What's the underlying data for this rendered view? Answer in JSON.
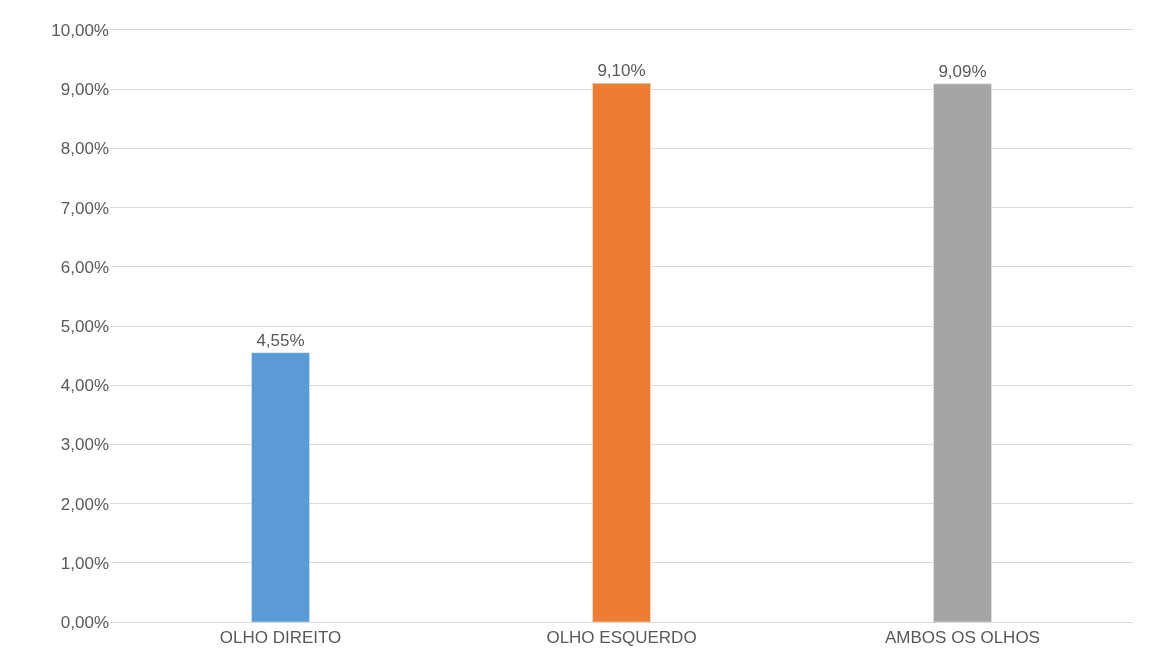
{
  "chart_data": {
    "type": "bar",
    "categories": [
      "OLHO DIREITO",
      "OLHO ESQUERDO",
      "AMBOS OS OLHOS"
    ],
    "values": [
      4.55,
      9.1,
      9.09
    ],
    "colors": [
      "#5b9bd5",
      "#ed7d31",
      "#a5a5a5"
    ],
    "value_labels": [
      "4,55%",
      "9,10%",
      "9,09%"
    ],
    "ylim": [
      0,
      10
    ],
    "yticks": [
      {
        "value": 0,
        "label": "0,00%"
      },
      {
        "value": 1,
        "label": "1,00%"
      },
      {
        "value": 2,
        "label": "2,00%"
      },
      {
        "value": 3,
        "label": "3,00%"
      },
      {
        "value": 4,
        "label": "4,00%"
      },
      {
        "value": 5,
        "label": "5,00%"
      },
      {
        "value": 6,
        "label": "6,00%"
      },
      {
        "value": 7,
        "label": "7,00%"
      },
      {
        "value": 8,
        "label": "8,00%"
      },
      {
        "value": 9,
        "label": "9,00%"
      },
      {
        "value": 10,
        "label": "10,00%"
      }
    ],
    "grid": "y"
  }
}
